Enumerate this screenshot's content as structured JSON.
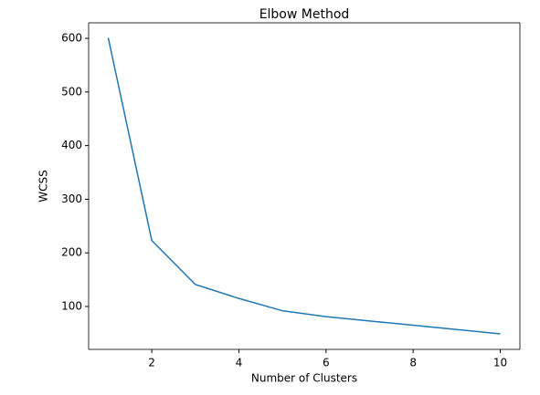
{
  "chart_data": {
    "type": "line",
    "title": "Elbow Method",
    "x_label": "Number of Clusters",
    "y_label": "WCSS",
    "x": [
      1,
      2,
      3,
      4,
      5,
      6,
      7,
      8,
      9,
      10
    ],
    "series": [
      {
        "name": "WCSS",
        "color": "#1f77b4",
        "values": [
          601,
          223,
          141,
          115,
          92,
          81,
          73,
          65,
          57,
          49
        ]
      }
    ],
    "xlim": [
      0.55,
      10.45
    ],
    "xticks": [
      2,
      4,
      6,
      8,
      10
    ],
    "ylim": [
      20,
      629
    ],
    "yticks": [
      100,
      200,
      300,
      400,
      500,
      600
    ]
  }
}
